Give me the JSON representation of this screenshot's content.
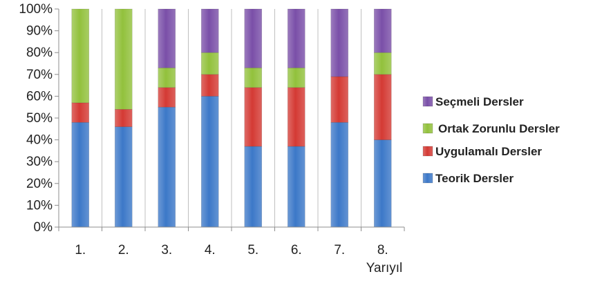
{
  "chart_data": {
    "type": "bar",
    "stacked": true,
    "percent": true,
    "categories": [
      "1.",
      "2.",
      "3.",
      "4.",
      "5.",
      "6.",
      "7.",
      "8."
    ],
    "xlabel": "Yarıyıl",
    "ylabel": "",
    "ylim": [
      0,
      100
    ],
    "yticks": [
      "0%",
      "10%",
      "20%",
      "30%",
      "40%",
      "50%",
      "60%",
      "70%",
      "80%",
      "90%",
      "100%"
    ],
    "grid": "vertical separators",
    "legend_position": "right",
    "series": [
      {
        "name": "Teorik Dersler",
        "color": "#3c78c8",
        "values": [
          48,
          46,
          55,
          60,
          37,
          37,
          48,
          40
        ]
      },
      {
        "name": "Uygulamalı Dersler",
        "color": "#d43a34",
        "values": [
          9,
          8,
          9,
          10,
          27,
          27,
          21,
          30
        ]
      },
      {
        "name": "Ortak Zorunlu Dersler",
        "color": "#92c13c",
        "values": [
          43,
          46,
          9,
          10,
          9,
          9,
          0,
          10
        ]
      },
      {
        "name": "Seçmeli Dersler",
        "color": "#7a4fa8",
        "values": [
          0,
          0,
          27,
          20,
          27,
          27,
          31,
          20
        ]
      }
    ]
  }
}
